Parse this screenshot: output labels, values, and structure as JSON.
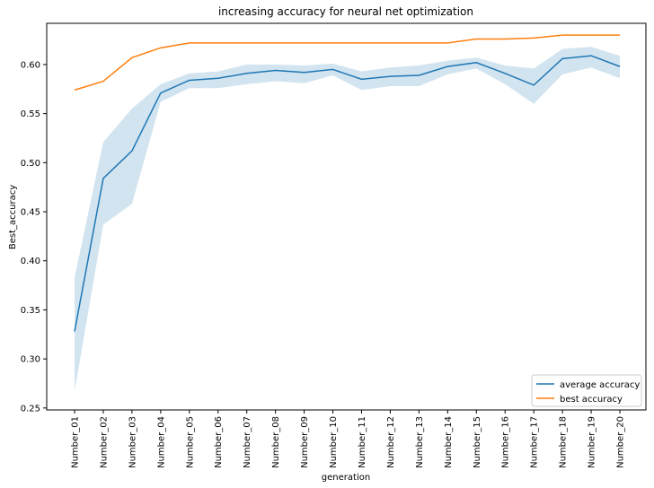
{
  "chart_data": {
    "type": "line",
    "title": "increasing accuracy for neural net optimization",
    "xlabel": "generation",
    "ylabel": "Best_accuracy",
    "categories": [
      "Number_01",
      "Number_02",
      "Number_03",
      "Number_04",
      "Number_05",
      "Number_06",
      "Number_07",
      "Number_08",
      "Number_09",
      "Number_10",
      "Number_11",
      "Number_12",
      "Number_13",
      "Number_14",
      "Number_15",
      "Number_16",
      "Number_17",
      "Number_18",
      "Number_19",
      "Number_20"
    ],
    "ylim": [
      0.248,
      0.642
    ],
    "yticks": [
      "0.25",
      "0.30",
      "0.35",
      "0.40",
      "0.45",
      "0.50",
      "0.55",
      "0.60"
    ],
    "legend_position": "lower-right",
    "series": [
      {
        "name": "average accuracy",
        "color": "#1f77b4",
        "values": [
          0.328,
          0.484,
          0.512,
          0.571,
          0.584,
          0.586,
          0.591,
          0.594,
          0.592,
          0.595,
          0.585,
          0.588,
          0.589,
          0.598,
          0.602,
          0.591,
          0.579,
          0.606,
          0.609,
          0.598
        ],
        "band_low": [
          0.267,
          0.437,
          0.458,
          0.562,
          0.576,
          0.576,
          0.58,
          0.583,
          0.581,
          0.589,
          0.574,
          0.578,
          0.578,
          0.59,
          0.596,
          0.58,
          0.56,
          0.59,
          0.597,
          0.586
        ],
        "band_high": [
          0.383,
          0.521,
          0.555,
          0.58,
          0.591,
          0.593,
          0.6,
          0.6,
          0.599,
          0.601,
          0.593,
          0.597,
          0.599,
          0.604,
          0.607,
          0.599,
          0.596,
          0.616,
          0.618,
          0.609
        ]
      },
      {
        "name": "best accuracy",
        "color": "#ff7f0e",
        "values": [
          0.574,
          0.583,
          0.607,
          0.617,
          0.622,
          0.622,
          0.622,
          0.622,
          0.622,
          0.622,
          0.622,
          0.622,
          0.622,
          0.622,
          0.626,
          0.626,
          0.627,
          0.63,
          0.63,
          0.63
        ]
      }
    ]
  }
}
